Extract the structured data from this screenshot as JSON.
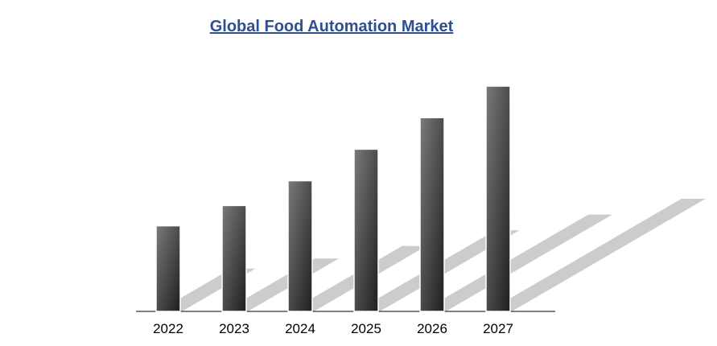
{
  "chart_data": {
    "type": "bar",
    "title": "Global Food Automation Market",
    "categories": [
      "2022",
      "2023",
      "2024",
      "2025",
      "2026",
      "2027"
    ],
    "values": [
      38,
      47,
      58,
      72,
      86,
      100
    ],
    "ylim": [
      0,
      100
    ],
    "xlabel": "",
    "ylabel": "",
    "grid": false,
    "legend": "none",
    "colors": {
      "bar_dark": "#1e1e1e",
      "bar_light": "#7a7a7a",
      "shadow": "#cccccc",
      "title": "#2f4f8f",
      "axis": "#000000"
    }
  }
}
